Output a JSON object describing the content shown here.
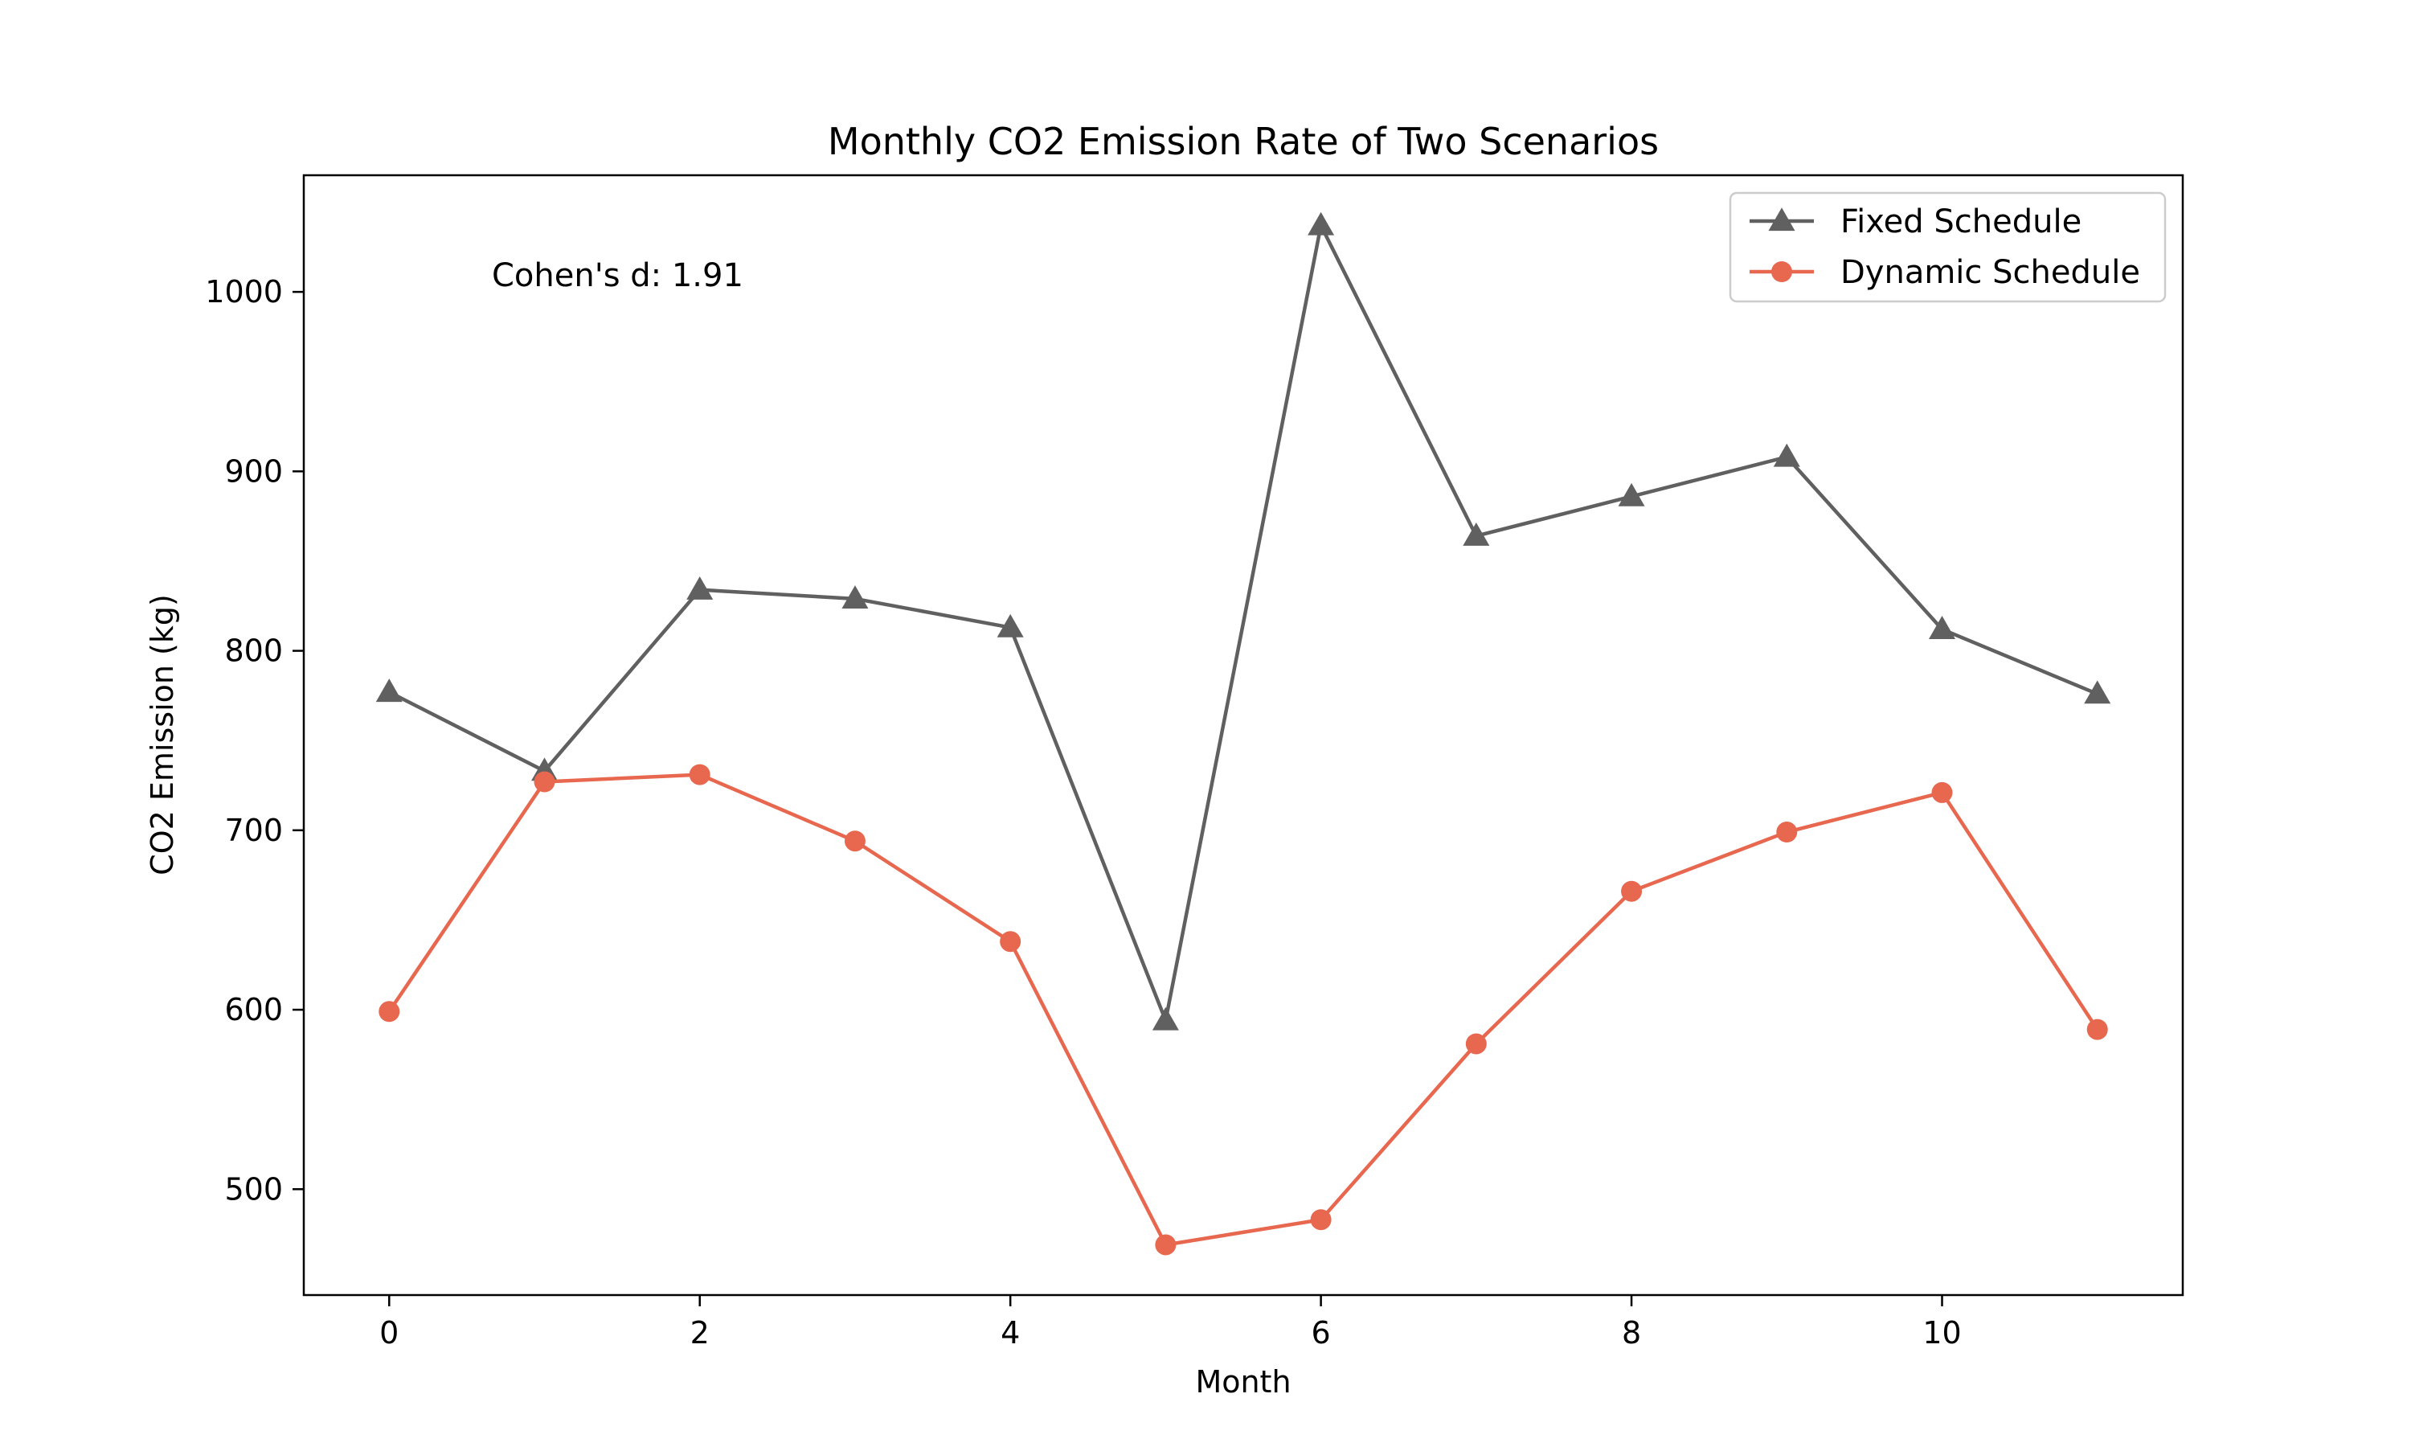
{
  "chart_data": {
    "type": "line",
    "title": "Monthly CO2 Emission Rate of Two Scenarios",
    "xlabel": "Month",
    "ylabel": "CO2 Emission (kg)",
    "x": [
      0,
      1,
      2,
      3,
      4,
      5,
      6,
      7,
      8,
      9,
      10,
      11
    ],
    "xlim": [
      -0.55,
      11.55
    ],
    "ylim": [
      441,
      1065
    ],
    "xticks": [
      0,
      2,
      4,
      6,
      8,
      10
    ],
    "yticks": [
      500,
      600,
      700,
      800,
      900,
      1000
    ],
    "grid": false,
    "legend_position": "top-right",
    "annotation": "Cohen's d: 1.91",
    "series": [
      {
        "name": "Fixed Schedule",
        "color": "#606060",
        "marker": "triangle",
        "values": [
          777,
          733,
          834,
          829,
          813,
          594,
          1037,
          864,
          886,
          908,
          812,
          776
        ]
      },
      {
        "name": "Dynamic Schedule",
        "color": "#E8674F",
        "marker": "circle",
        "values": [
          599,
          727,
          731,
          694,
          638,
          469,
          483,
          581,
          666,
          699,
          721,
          589
        ]
      }
    ]
  }
}
